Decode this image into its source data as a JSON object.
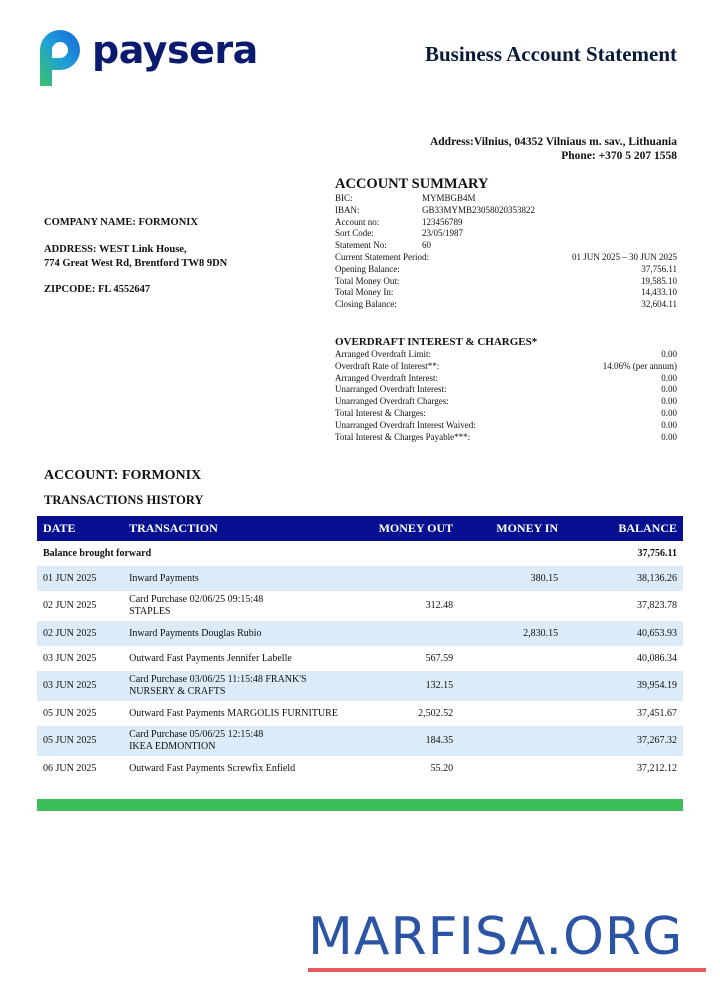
{
  "header": {
    "logo": "paysera",
    "title": "Business Account Statement",
    "address": "Address:Vilnius, 04352 Vilniaus m. sav., Lithuania",
    "phone": "Phone: +370 5 207 1558"
  },
  "company": {
    "name": "COMPANY NAME: FORMONIX",
    "address_lines": [
      "ADDRESS: WEST Link House,",
      "774 Great West Rd, Brentford TW8 9DN"
    ],
    "zipcode": "ZIPCODE: FL 4552647"
  },
  "account_summary": {
    "title": "ACCOUNT SUMMARY",
    "details": [
      {
        "label": "BIC:",
        "value": "MYMBGB4M"
      },
      {
        "label": "IBAN:",
        "value": "GB33MYMB23058020353822"
      },
      {
        "label": "Account no:",
        "value": "123456789"
      },
      {
        "label": "Sort Code:",
        "value": "23/05/1987"
      },
      {
        "label": "Statement No:",
        "value": "60"
      }
    ],
    "balances": [
      {
        "label": "Current Statement Period:",
        "value": "01 JUN 2025 – 30 JUN 2025"
      },
      {
        "label": "Opening Balance:",
        "value": "37,756.11"
      },
      {
        "label": "Total Money Out:",
        "value": "19,585.10"
      },
      {
        "label": "Total Money In:",
        "value": "14,433.10"
      },
      {
        "label": "Closing Balance:",
        "value": "32,604.11"
      }
    ]
  },
  "overdraft": {
    "title": "OVERDRAFT INTEREST & CHARGES*",
    "rows": [
      {
        "label": "Arranged Overdraft Limit:",
        "value": "0.00"
      },
      {
        "label": "Overdraft Rate of Interest**:",
        "value": "14.06% (per annum)"
      },
      {
        "label": "Arranged Overdraft Interest:",
        "value": "0.00"
      },
      {
        "label": "Unarranged Overdraft Interest:",
        "value": "0.00"
      },
      {
        "label": "Unarranged Overdraft Charges:",
        "value": "0.00"
      },
      {
        "label": "Total Interest & Charges:",
        "value": "0.00"
      },
      {
        "label": "Unarranged Overdraft Interest Waived:",
        "value": "0.00"
      },
      {
        "label": "Total Interest & Charges Payable***:",
        "value": "0.00"
      }
    ]
  },
  "account_title": "ACCOUNT: FORMONIX",
  "history_title": "TRANSACTIONS HISTORY",
  "table": {
    "columns": [
      "DATE",
      "TRANSACTION",
      "MONEY OUT",
      "MONEY IN",
      "BALANCE"
    ],
    "opening": {
      "label": "Balance brought forward",
      "balance": "37,756.11"
    },
    "rows": [
      {
        "date": "01 JUN 2025",
        "transaction": "Inward Payments",
        "money_in": "380.15",
        "balance": "38,136.26"
      },
      {
        "date": "02 JUN 2025",
        "transaction": "Card Purchase 02/06/25 09:15:48\nSTAPLES",
        "money_out": "312.48",
        "balance": "37,823.78"
      },
      {
        "date": "02 JUN 2025",
        "transaction": "Inward Payments Douglas Rubio",
        "money_in": "2,830.15",
        "balance": "40,653.93"
      },
      {
        "date": "03 JUN 2025",
        "transaction": "Outward Fast Payments Jennifer Labelle",
        "money_out": "567.59",
        "balance": "40,086.34"
      },
      {
        "date": "03 JUN 2025",
        "transaction": "Card Purchase 03/06/25 11:15:48 FRANK'S\nNURSERY & CRAFTS",
        "money_out": "132.15",
        "balance": "39,954.19"
      },
      {
        "date": "05 JUN 2025",
        "transaction": "Outward Fast Payments MARGOLIS FURNITURE",
        "money_out": "2,502.52",
        "balance": "37,451.67"
      },
      {
        "date": "05 JUN 2025",
        "transaction": "Card Purchase 05/06/25 12:15:48\nIKEA EDMONTION",
        "money_out": "184.35",
        "balance": "37,267.32"
      },
      {
        "date": "06 JUN 2025",
        "transaction": "Outward Fast Payments Screwfix Enfield",
        "money_out": "55.20",
        "balance": "37,212.12"
      }
    ]
  },
  "watermark": "MARFISA.ORG"
}
